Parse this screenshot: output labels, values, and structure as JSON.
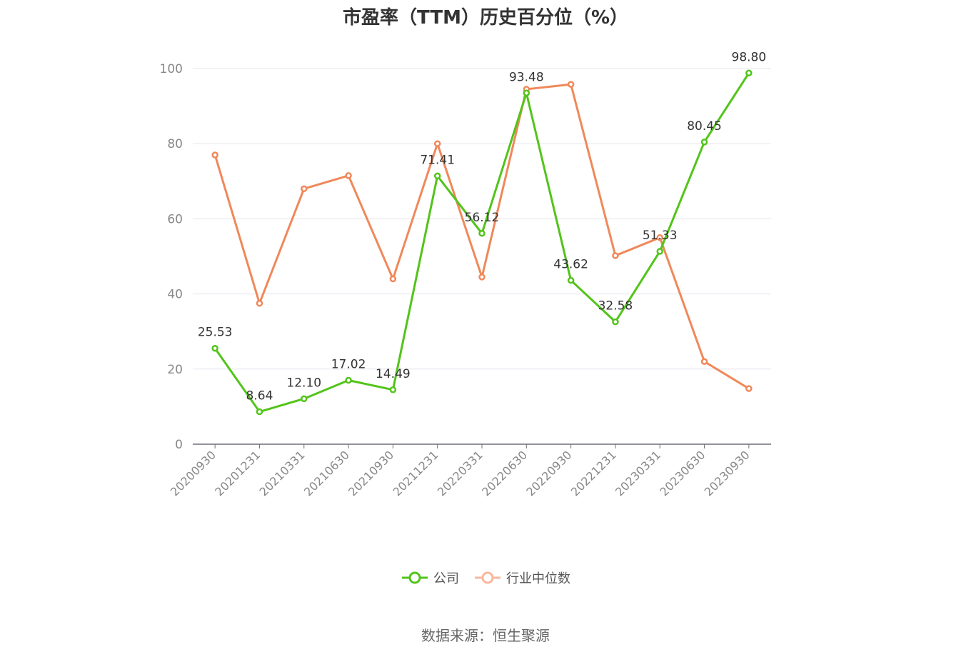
{
  "chart_data": {
    "type": "line",
    "title": "市盈率（TTM）历史百分位（%）",
    "x": [
      "20200930",
      "20201231",
      "20210331",
      "20210630",
      "20210930",
      "20211231",
      "20220331",
      "20220630",
      "20220930",
      "20221231",
      "20230331",
      "20230630",
      "20230930"
    ],
    "ylim": [
      0,
      100
    ],
    "yticks": [
      0,
      20,
      40,
      60,
      80,
      100
    ],
    "grid": true,
    "legend_position": "bottom",
    "series": [
      {
        "name": "公司",
        "color": "#52c41a",
        "values": [
          25.53,
          8.64,
          12.1,
          17.02,
          14.49,
          71.41,
          56.12,
          93.48,
          43.62,
          32.58,
          51.33,
          80.45,
          98.8
        ],
        "labels": [
          "25.53",
          "8.64",
          "12.10",
          "17.02",
          "14.49",
          "71.41",
          "56.12",
          "93.48",
          "43.62",
          "32.58",
          "51.33",
          "80.45",
          "98.80"
        ]
      },
      {
        "name": "行业中位数",
        "color": "#f0885a",
        "values": [
          77,
          37.5,
          68,
          71.5,
          44,
          80,
          44.5,
          94.5,
          95.8,
          50.2,
          55,
          22,
          14.8
        ]
      }
    ],
    "source": "数据来源：恒生聚源"
  }
}
